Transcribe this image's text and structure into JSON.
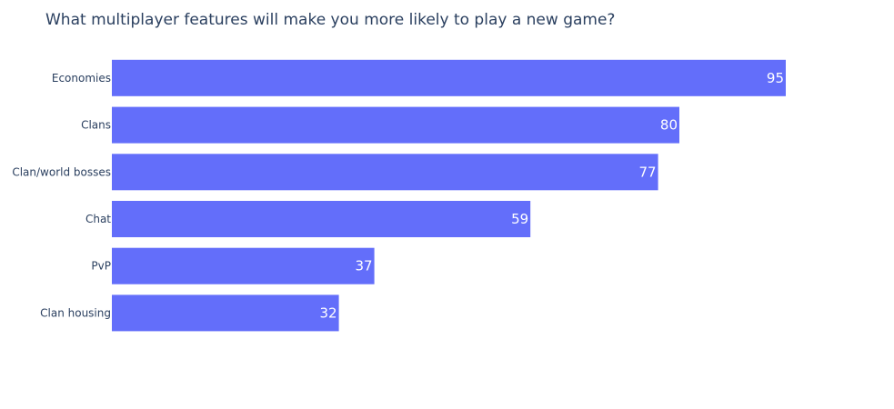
{
  "chart_data": {
    "type": "bar",
    "orientation": "horizontal",
    "title": "What multiplayer features will make you more likely to play a new game?",
    "categories": [
      "Economies",
      "Clans",
      "Clan/world bosses",
      "Chat",
      "PvP",
      "Clan housing"
    ],
    "values": [
      95,
      80,
      77,
      59,
      37,
      32
    ],
    "bar_color": "#636efa",
    "xlim": [
      0,
      100
    ],
    "grid": false,
    "legend": false,
    "data_labels": "inside-end"
  }
}
